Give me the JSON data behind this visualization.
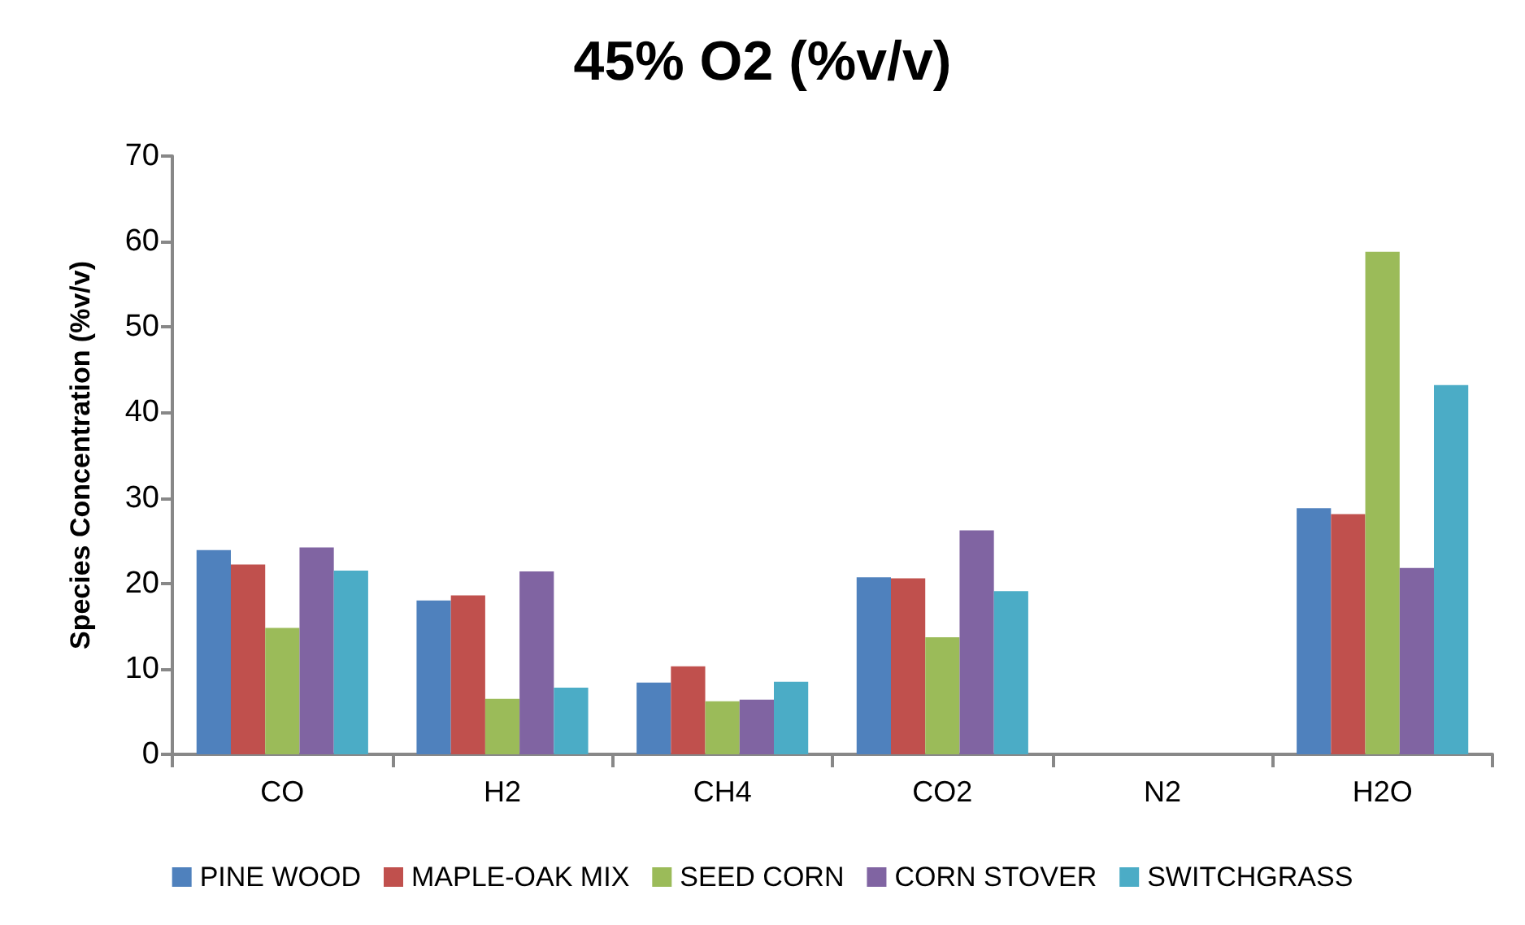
{
  "chart_data": {
    "type": "bar",
    "title": "45% O2 (%v/v)",
    "ylabel": "Species Concentration (%v/v)",
    "categories": [
      "CO",
      "H2",
      "CH4",
      "CO2",
      "N2",
      "H2O"
    ],
    "series": [
      {
        "name": "PINE WOOD",
        "color": "#4f81bd",
        "values": [
          23.9,
          18.0,
          8.4,
          20.7,
          0,
          28.8
        ]
      },
      {
        "name": "MAPLE-OAK MIX",
        "color": "#c0504d",
        "values": [
          22.2,
          18.6,
          10.3,
          20.6,
          0,
          28.1
        ]
      },
      {
        "name": "SEED CORN",
        "color": "#9bbb59",
        "values": [
          14.8,
          6.5,
          6.2,
          13.7,
          0,
          58.8
        ]
      },
      {
        "name": "CORN STOVER",
        "color": "#8064a2",
        "values": [
          24.2,
          21.4,
          6.4,
          26.2,
          0,
          21.8
        ]
      },
      {
        "name": "SWITCHGRASS",
        "color": "#4bacc6",
        "values": [
          21.5,
          7.8,
          8.5,
          19.1,
          0,
          43.2
        ]
      }
    ],
    "ylim": [
      0,
      70
    ],
    "yticks": [
      0,
      10,
      20,
      30,
      40,
      50,
      60,
      70
    ],
    "grid": false,
    "legend": "bottom"
  }
}
